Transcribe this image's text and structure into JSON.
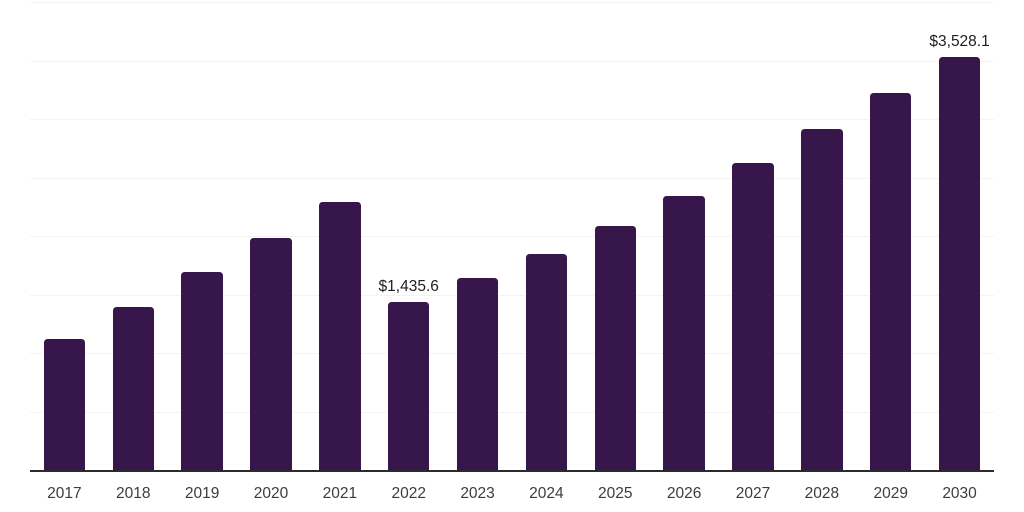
{
  "chart_data": {
    "type": "bar",
    "title": "",
    "xlabel": "",
    "ylabel": "",
    "categories": [
      "2017",
      "2018",
      "2019",
      "2020",
      "2021",
      "2022",
      "2023",
      "2024",
      "2025",
      "2026",
      "2027",
      "2028",
      "2029",
      "2030"
    ],
    "values": [
      1117,
      1396,
      1690,
      1986,
      2293,
      1435.6,
      1644,
      1849,
      2088,
      2345,
      2621,
      2915,
      3225,
      3528.1
    ],
    "data_labels": [
      {
        "index": 5,
        "text": "$1,435.6"
      },
      {
        "index": 13,
        "text": "$3,528.1"
      }
    ],
    "ylim": [
      0,
      4000
    ],
    "gridline_step": 500,
    "grid": true,
    "y_axis_labels_visible": false,
    "legend": "none",
    "colors": {
      "bar": "#36164B",
      "grid": "#F3F3F3",
      "axis_line": "#2B2B2B",
      "data_label": "#1E1E1E",
      "tick_label": "#3C3C3C",
      "background": "#FFFFFF"
    }
  }
}
